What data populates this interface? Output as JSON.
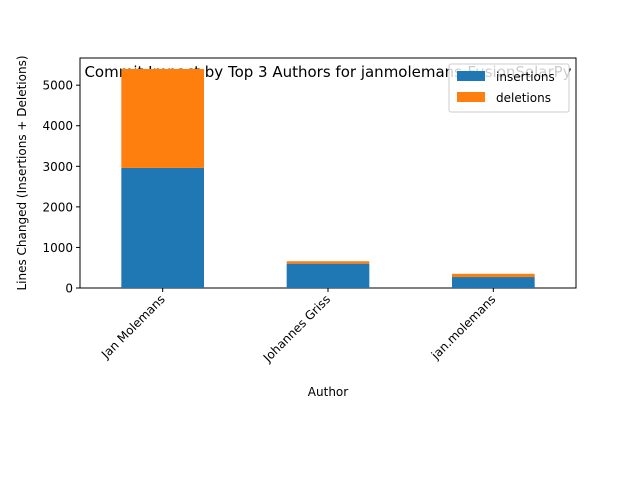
{
  "chart_data": {
    "type": "bar",
    "stacked": true,
    "title": "Commit Impact by Top 3 Authors for janmolemans-FusionSolarPy",
    "xlabel": "Author",
    "ylabel": "Lines Changed (Insertions + Deletions)",
    "categories": [
      "Jan Molemans",
      "Johannes Griss",
      "jan.molemans"
    ],
    "series": [
      {
        "name": "insertions",
        "values": [
          2960,
          600,
          270
        ],
        "color": "#1f77b4"
      },
      {
        "name": "deletions",
        "values": [
          2440,
          60,
          80
        ],
        "color": "#ff7f0e"
      }
    ],
    "ylim": [
      0,
      5670
    ],
    "yticks": [
      0,
      1000,
      2000,
      3000,
      4000,
      5000
    ],
    "ytick_labels": [
      "0",
      "1000",
      "2000",
      "3000",
      "4000",
      "5000"
    ],
    "grid": false,
    "legend_position": "top-right",
    "x_tick_rotation": 45
  }
}
